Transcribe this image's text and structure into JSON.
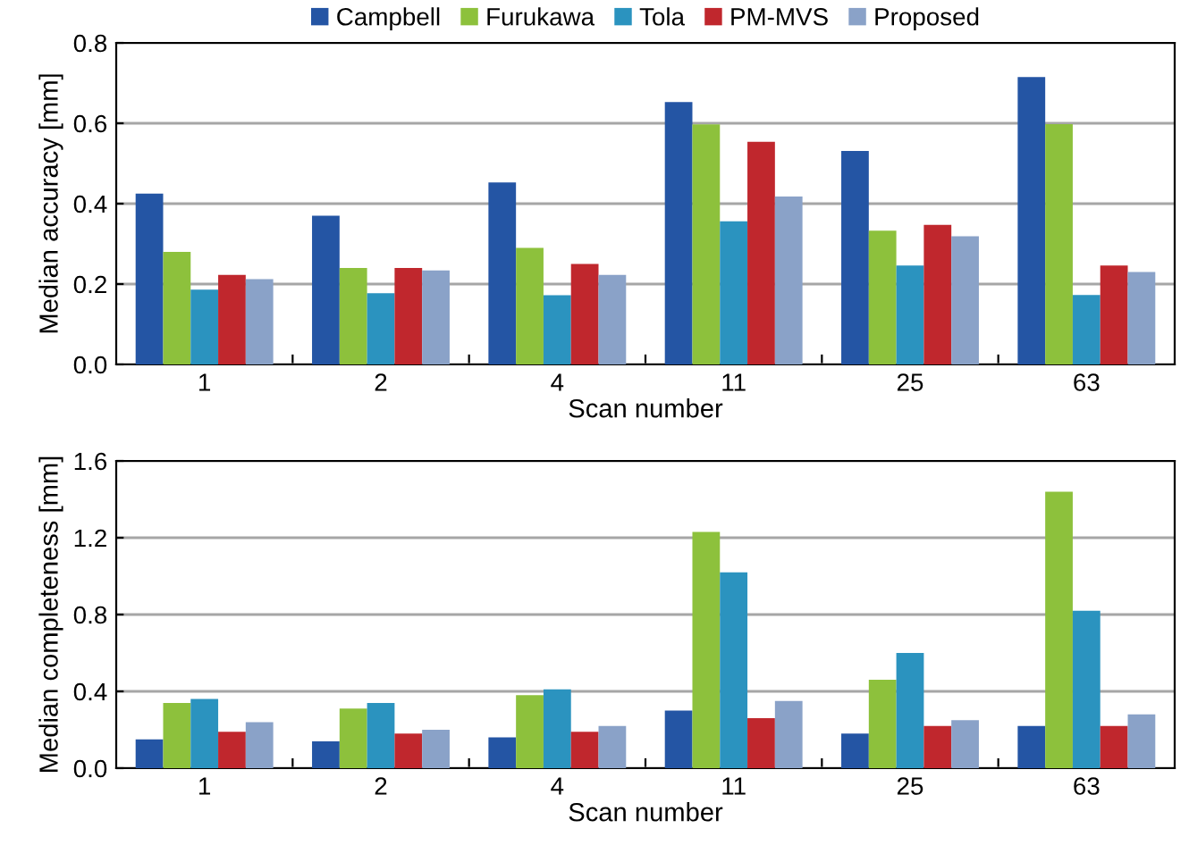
{
  "chart_data": [
    {
      "type": "bar",
      "xlabel": "Scan number",
      "ylabel": "Median accuracy [mm]",
      "categories": [
        "1",
        "2",
        "4",
        "11",
        "25",
        "63"
      ],
      "ylim": [
        0,
        0.8
      ],
      "yticks": [
        {
          "value": 0,
          "label": "0.0"
        },
        0.2,
        0.4,
        0.6,
        0.8
      ],
      "grid": "y",
      "legend": "top",
      "series": [
        {
          "name": "Campbell",
          "color": "#2455a4",
          "values": [
            0.425,
            0.37,
            0.453,
            0.653,
            0.531,
            0.715
          ]
        },
        {
          "name": "Furukawa",
          "color": "#8dc13c",
          "values": [
            0.28,
            0.24,
            0.29,
            0.597,
            0.333,
            0.598
          ]
        },
        {
          "name": "Tola",
          "color": "#2b93bf",
          "values": [
            0.186,
            0.177,
            0.172,
            0.356,
            0.246,
            0.173
          ]
        },
        {
          "name": "PM-MVS",
          "color": "#c0272d",
          "values": [
            0.223,
            0.24,
            0.25,
            0.554,
            0.347,
            0.246
          ]
        },
        {
          "name": "Proposed",
          "color": "#8aa2c8",
          "values": [
            0.212,
            0.234,
            0.223,
            0.418,
            0.319,
            0.23
          ]
        }
      ]
    },
    {
      "type": "bar",
      "xlabel": "Scan number",
      "ylabel": "Median completeness [mm]",
      "categories": [
        "1",
        "2",
        "4",
        "11",
        "25",
        "63"
      ],
      "ylim": [
        0,
        1.6
      ],
      "yticks": [
        {
          "value": 0,
          "label": "0.0"
        },
        0.4,
        0.8,
        1.2,
        1.6
      ],
      "grid": "y",
      "series": [
        {
          "color": "#2455a4",
          "values": [
            0.15,
            0.14,
            0.16,
            0.3,
            0.18,
            0.22
          ]
        },
        {
          "color": "#8dc13c",
          "values": [
            0.34,
            0.31,
            0.38,
            1.23,
            0.46,
            1.44
          ]
        },
        {
          "color": "#2b93bf",
          "values": [
            0.36,
            0.34,
            0.41,
            1.02,
            0.6,
            0.82
          ]
        },
        {
          "color": "#c0272d",
          "values": [
            0.19,
            0.18,
            0.19,
            0.26,
            0.22,
            0.22
          ]
        },
        {
          "color": "#8aa2c8",
          "values": [
            0.24,
            0.2,
            0.22,
            0.35,
            0.25,
            0.28
          ]
        }
      ]
    }
  ]
}
